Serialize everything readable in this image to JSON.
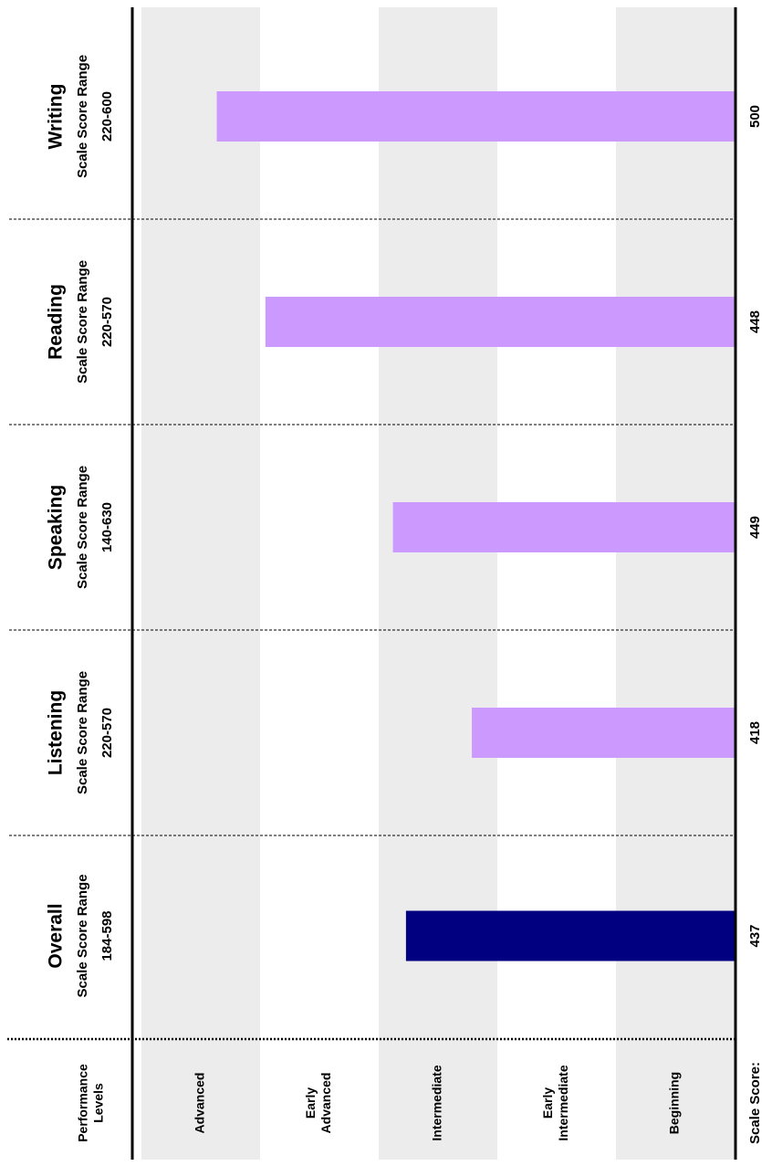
{
  "colors": {
    "band": "#ececec",
    "overall_bar": "#000080",
    "domain_bar": "#cc99ff",
    "axis": "#000000"
  },
  "header": {
    "performance_levels": [
      "Performance",
      "Levels"
    ],
    "scale_score": "Scale Score:"
  },
  "levels": [
    {
      "lines": [
        "Beginning"
      ],
      "shaded": true
    },
    {
      "lines": [
        "Early",
        "Intermediate"
      ],
      "shaded": false
    },
    {
      "lines": [
        "Intermediate"
      ],
      "shaded": true
    },
    {
      "lines": [
        "Early",
        "Advanced"
      ],
      "shaded": false
    },
    {
      "lines": [
        "Advanced"
      ],
      "shaded": true
    }
  ],
  "chart_data": {
    "type": "bar",
    "orientation": "horizontal (page rotated 90 degrees counter-clockwise)",
    "categories": [
      "Overall",
      "Listening",
      "Speaking",
      "Reading",
      "Writing"
    ],
    "range_label": "Scale Score Range",
    "ranges": [
      "184-598",
      "220-570",
      "140-630",
      "220-570",
      "220-600"
    ],
    "values": [
      437,
      418,
      449,
      448,
      500
    ],
    "performance_level_fraction": [
      0.554,
      0.443,
      0.576,
      0.791,
      0.873
    ],
    "grid": false
  }
}
